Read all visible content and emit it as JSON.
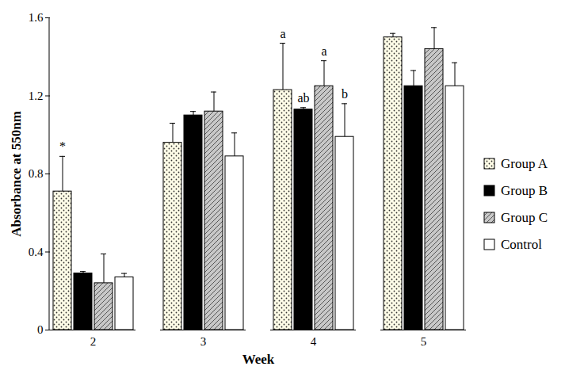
{
  "chart_data": {
    "type": "bar",
    "x_label": "Week",
    "y_label": "Absorbance at 550nm",
    "categories": [
      "2",
      "3",
      "4",
      "5"
    ],
    "series": [
      {
        "name": "Group A",
        "color": "#fffde8",
        "values": [
          0.71,
          0.96,
          1.23,
          1.5
        ],
        "errors": [
          0.18,
          0.1,
          0.24,
          0.02
        ]
      },
      {
        "name": "Group B",
        "color": "#000000",
        "values": [
          0.29,
          1.1,
          1.13,
          1.25
        ],
        "errors": [
          0.01,
          0.02,
          0.01,
          0.08
        ]
      },
      {
        "name": "Group C",
        "color": "#c8c8c8",
        "values": [
          0.24,
          1.12,
          1.25,
          1.44
        ],
        "errors": [
          0.15,
          0.1,
          0.13,
          0.11
        ]
      },
      {
        "name": "Control",
        "color": "#ffffff",
        "values": [
          0.27,
          0.89,
          0.99,
          1.25
        ],
        "errors": [
          0.02,
          0.12,
          0.17,
          0.12
        ]
      }
    ],
    "annotations": [
      {
        "category": "2",
        "series": "Group A",
        "text": "*"
      },
      {
        "category": "4",
        "series": "Group A",
        "text": "a"
      },
      {
        "category": "4",
        "series": "Group B",
        "text": "ab"
      },
      {
        "category": "4",
        "series": "Group C",
        "text": "a"
      },
      {
        "category": "4",
        "series": "Control",
        "text": "b"
      }
    ],
    "ylim": [
      0,
      1.6
    ],
    "yticks": [
      0,
      0.4,
      0.8,
      1.2,
      1.6
    ],
    "grid": false,
    "legend": "right"
  }
}
